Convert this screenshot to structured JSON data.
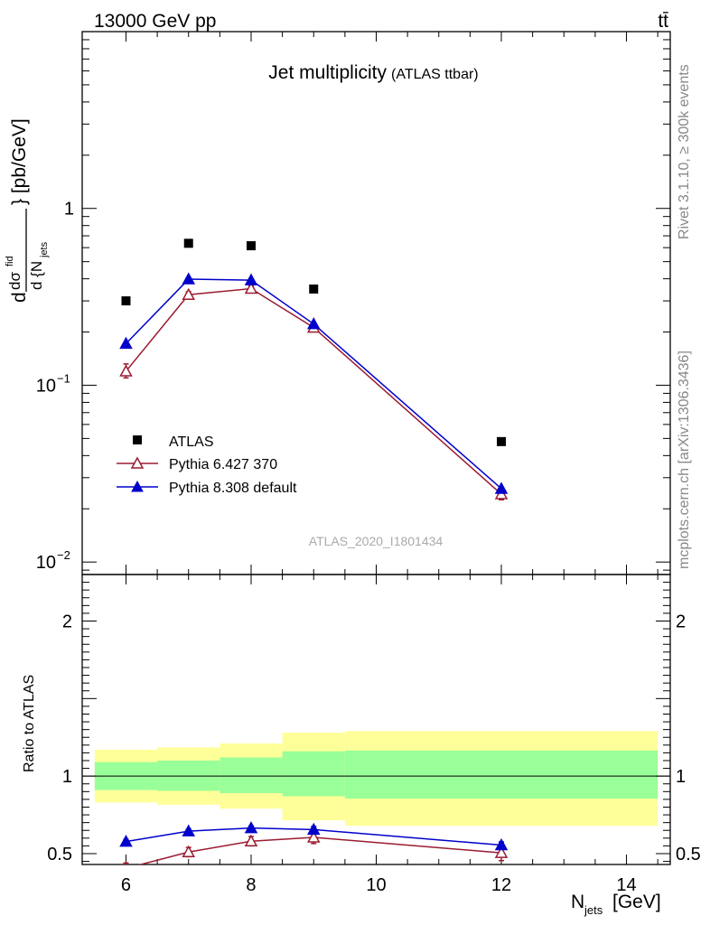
{
  "header": {
    "energy_label": "13000 GeV pp",
    "process_label": "tt̄"
  },
  "side_text": {
    "rivet": "Rivet 3.1.10, ≥ 300k events",
    "mcplots": "mcplots.cern.ch [arXiv:1306.3436]"
  },
  "chart_data": [
    {
      "type": "scatter",
      "title": "Jet multiplicity",
      "subtitle": "(ATLAS ttbar)",
      "watermark": "ATLAS_2020_I1801434",
      "ylabel": "d dσ^fid / d{N_jets} [pb/GeV]",
      "yscale": "log",
      "ylim": [
        0.0085,
        10
      ],
      "xlim": [
        5.3,
        14.7
      ],
      "y_ticks": [
        {
          "value": 1,
          "label": "1"
        },
        {
          "value": 0.1,
          "label": "10",
          "exp": "−1"
        },
        {
          "value": 0.01,
          "label": "10",
          "exp": "−2"
        }
      ],
      "legend_position": "lower-left",
      "series": [
        {
          "name": "ATLAS",
          "color": "#000000",
          "marker": "filled-square",
          "points": [
            {
              "x": 6,
              "y": 0.3
            },
            {
              "x": 7,
              "y": 0.635
            },
            {
              "x": 8,
              "y": 0.615
            },
            {
              "x": 9,
              "y": 0.35
            },
            {
              "x": 12,
              "y": 0.048
            }
          ]
        },
        {
          "name": "Pythia 6.427 370",
          "color": "#9b1b30",
          "marker": "open-triangle",
          "line": true,
          "points": [
            {
              "x": 6,
              "y": 0.12,
              "ylo": 0.11,
              "yhi": 0.132
            },
            {
              "x": 7,
              "y": 0.325,
              "ylo": 0.312,
              "yhi": 0.338
            },
            {
              "x": 8,
              "y": 0.352,
              "ylo": 0.34,
              "yhi": 0.364
            },
            {
              "x": 9,
              "y": 0.212,
              "ylo": 0.201,
              "yhi": 0.223
            },
            {
              "x": 12,
              "y": 0.0242,
              "ylo": 0.0225,
              "yhi": 0.0259
            }
          ]
        },
        {
          "name": "Pythia 8.308 default",
          "color": "#0000cc",
          "marker": "filled-triangle",
          "line": true,
          "points": [
            {
              "x": 6,
              "y": 0.172
            },
            {
              "x": 7,
              "y": 0.398
            },
            {
              "x": 8,
              "y": 0.393
            },
            {
              "x": 9,
              "y": 0.222
            },
            {
              "x": 12,
              "y": 0.026
            }
          ]
        }
      ]
    },
    {
      "type": "scatter",
      "ylabel": "Ratio to ATLAS",
      "xlabel": "N_jets [GeV]",
      "ylim": [
        0.43,
        2.3
      ],
      "xlim": [
        5.3,
        14.7
      ],
      "x_ticks": [
        6,
        8,
        10,
        12,
        14
      ],
      "y_ticks": [
        {
          "value": 0.5,
          "label": "0.5"
        },
        {
          "value": 1,
          "label": "1"
        },
        {
          "value": 2,
          "label": "2"
        }
      ],
      "reference_line": 1,
      "bands": [
        {
          "x0": 5.5,
          "x1": 6.5,
          "green": [
            0.91,
            1.09
          ],
          "yellow": [
            0.83,
            1.17
          ]
        },
        {
          "x0": 6.5,
          "x1": 7.5,
          "green": [
            0.905,
            1.1
          ],
          "yellow": [
            0.815,
            1.185
          ]
        },
        {
          "x0": 7.5,
          "x1": 8.5,
          "green": [
            0.89,
            1.12
          ],
          "yellow": [
            0.79,
            1.21
          ]
        },
        {
          "x0": 8.5,
          "x1": 9.5,
          "green": [
            0.87,
            1.16
          ],
          "yellow": [
            0.715,
            1.28
          ]
        },
        {
          "x0": 9.5,
          "x1": 14.5,
          "green": [
            0.855,
            1.165
          ],
          "yellow": [
            0.68,
            1.29
          ]
        }
      ],
      "band_colors": {
        "green": "#99ff99",
        "yellow": "#ffff99"
      },
      "series": [
        {
          "name": "Pythia 6.427 370",
          "color": "#9b1b30",
          "marker": "open-triangle",
          "points": [
            {
              "x": 6,
              "y": 0.405,
              "ylo": 0.37,
              "yhi": 0.44
            },
            {
              "x": 7,
              "y": 0.51,
              "ylo": 0.48,
              "yhi": 0.54
            },
            {
              "x": 8,
              "y": 0.58,
              "ylo": 0.55,
              "yhi": 0.61
            },
            {
              "x": 9,
              "y": 0.605,
              "ylo": 0.565,
              "yhi": 0.645
            },
            {
              "x": 12,
              "y": 0.505,
              "ylo": 0.455,
              "yhi": 0.555
            }
          ]
        },
        {
          "name": "Pythia 8.308 default",
          "color": "#0000cc",
          "marker": "filled-triangle",
          "points": [
            {
              "x": 6,
              "y": 0.578,
              "ylo": 0.565,
              "yhi": 0.592
            },
            {
              "x": 7,
              "y": 0.645,
              "ylo": 0.632,
              "yhi": 0.658
            },
            {
              "x": 8,
              "y": 0.665,
              "ylo": 0.652,
              "yhi": 0.678
            },
            {
              "x": 9,
              "y": 0.655,
              "ylo": 0.635,
              "yhi": 0.675
            },
            {
              "x": 12,
              "y": 0.555,
              "ylo": 0.535,
              "yhi": 0.575
            }
          ]
        }
      ]
    }
  ]
}
